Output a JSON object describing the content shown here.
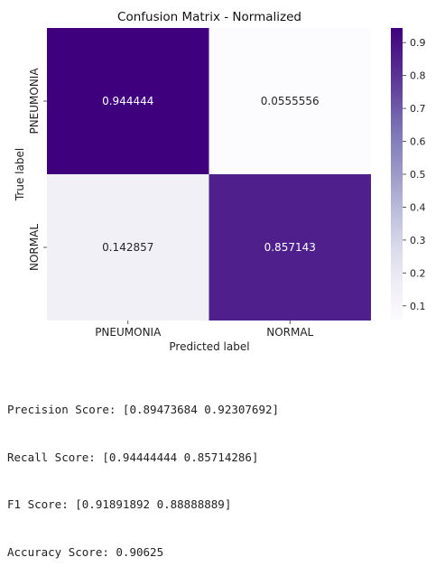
{
  "chart_data": {
    "type": "heatmap",
    "title": "Confusion Matrix - Normalized",
    "xlabel": "Predicted label",
    "ylabel": "True label",
    "x_categories": [
      "PNEUMONIA",
      "NORMAL"
    ],
    "y_categories": [
      "PNEUMONIA",
      "NORMAL"
    ],
    "values": [
      [
        0.944444,
        0.0555556
      ],
      [
        0.142857,
        0.857143
      ]
    ],
    "value_labels": [
      [
        "0.944444",
        "0.0555556"
      ],
      [
        "0.142857",
        "0.857143"
      ]
    ],
    "colormap": "Purples",
    "color_range": [
      0.0555556,
      0.944444
    ],
    "colorbar_ticks": [
      0.1,
      0.2,
      0.3,
      0.4,
      0.5,
      0.6,
      0.7,
      0.8,
      0.9
    ],
    "colorbar_tick_labels": [
      "0.1",
      "0.2",
      "0.3",
      "0.4",
      "0.5",
      "0.6",
      "0.7",
      "0.8",
      "0.9"
    ],
    "colors": {
      "low": "#fcfbfd",
      "high": "#3f007d",
      "dark_text": "#262626",
      "light_text": "#ffffff"
    }
  },
  "metrics": {
    "precision": "Precision Score: [0.89473684 0.92307692]",
    "recall": "Recall Score: [0.94444444 0.85714286]",
    "f1": "F1 Score: [0.91891892 0.88888889]",
    "accuracy": "Accuracy Score: 0.90625"
  }
}
